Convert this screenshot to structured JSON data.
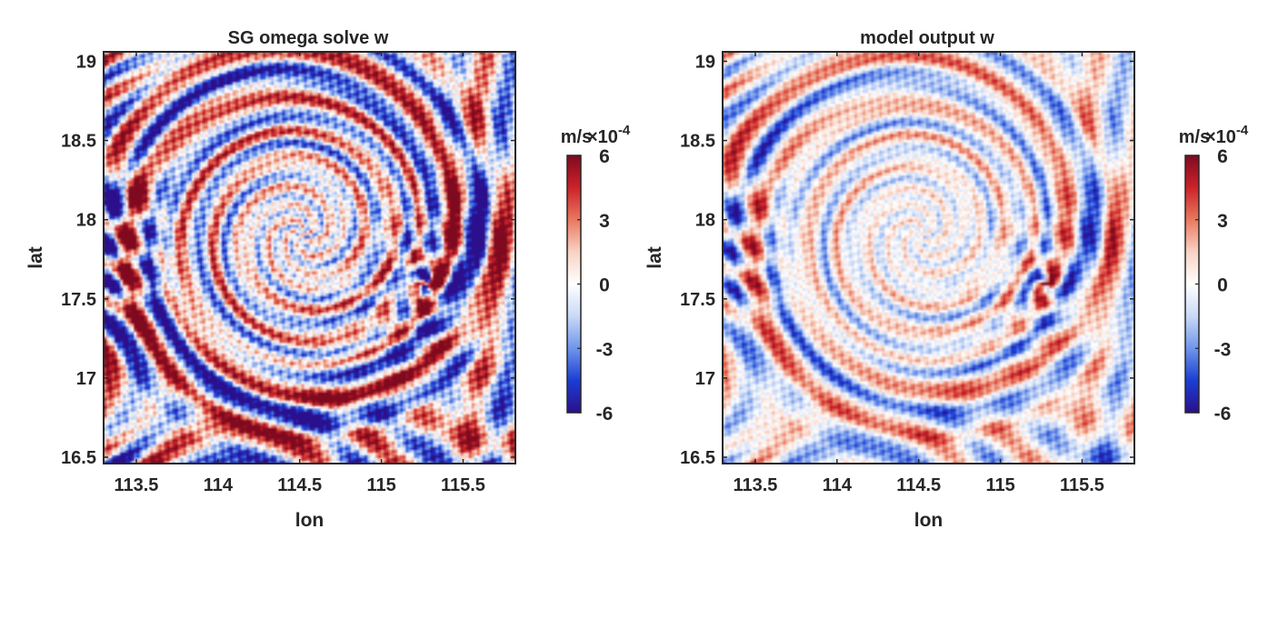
{
  "chart_data": [
    {
      "type": "heatmap",
      "title": "SG omega solve w",
      "xlabel": "lon",
      "ylabel": "lat",
      "xlim": [
        113.3,
        115.82
      ],
      "ylim": [
        16.46,
        19.06
      ],
      "xticks": [
        113.5,
        114,
        114.5,
        115,
        115.5
      ],
      "xtick_labels": [
        "113.5",
        "114",
        "114.5",
        "115",
        "115.5"
      ],
      "yticks": [
        16.5,
        17,
        17.5,
        18,
        18.5,
        19
      ],
      "ytick_labels": [
        "16.5",
        "17",
        "17.5",
        "18",
        "18.5",
        "19"
      ],
      "colorbar": {
        "label": "m/s",
        "exponent_label": "×10",
        "exponent": "-4",
        "limits": [
          -6,
          6
        ],
        "ticks": [
          6,
          3,
          0,
          -3,
          -6
        ],
        "tick_labels": [
          "6",
          "3",
          "0",
          "-3",
          "-6"
        ],
        "colormap": [
          "#2b0f8c",
          "#1a3ed4",
          "#6f95ea",
          "#c9d9f6",
          "#ffffff",
          "#f8d2c3",
          "#e8795f",
          "#cc2229",
          "#7f0a1f"
        ]
      },
      "field_intensity": 1.0
    },
    {
      "type": "heatmap",
      "title": "model output w",
      "xlabel": "lon",
      "ylabel": "lat",
      "xlim": [
        113.3,
        115.82
      ],
      "ylim": [
        16.46,
        19.06
      ],
      "xticks": [
        113.5,
        114,
        114.5,
        115,
        115.5
      ],
      "xtick_labels": [
        "113.5",
        "114",
        "114.5",
        "115",
        "115.5"
      ],
      "yticks": [
        16.5,
        17,
        17.5,
        18,
        18.5,
        19
      ],
      "ytick_labels": [
        "16.5",
        "17",
        "17.5",
        "18",
        "18.5",
        "19"
      ],
      "colorbar": {
        "label": "m/s",
        "exponent_label": "×10",
        "exponent": "-4",
        "limits": [
          -6,
          6
        ],
        "ticks": [
          6,
          3,
          0,
          -3,
          -6
        ],
        "tick_labels": [
          "6",
          "3",
          "0",
          "-3",
          "-6"
        ],
        "colormap": [
          "#2b0f8c",
          "#1a3ed4",
          "#6f95ea",
          "#c9d9f6",
          "#ffffff",
          "#f8d2c3",
          "#e8795f",
          "#cc2229",
          "#7f0a1f"
        ]
      },
      "field_intensity": 0.6
    }
  ]
}
